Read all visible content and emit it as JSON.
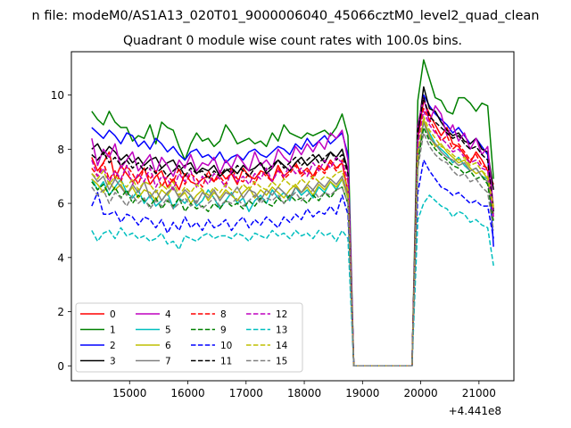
{
  "figure": {
    "suptitle": "n file: modeM0/AS1A13_020T01_9000006040_45066cztM0_level2_quad_clean",
    "offset_text": "+4.441e8"
  },
  "chart_data": {
    "type": "line",
    "title": "Quadrant 0 module wise count rates with 100.0s bins.",
    "xlabel": "",
    "ylabel": "",
    "x_offset": 444100000,
    "xlim": [
      14000,
      21600
    ],
    "ylim": [
      -0.55,
      11.6
    ],
    "xticks": [
      15000,
      16000,
      17000,
      18000,
      19000,
      20000,
      21000
    ],
    "xtick_labels": [
      "15000",
      "16000",
      "17000",
      "18000",
      "19000",
      "20000",
      "21000"
    ],
    "yticks": [
      0,
      2,
      4,
      6,
      8,
      10
    ],
    "ytick_labels": [
      "0",
      "2",
      "4",
      "6",
      "8",
      "10"
    ],
    "grid": false,
    "legend_position": "lower-left",
    "legend_columns": 4,
    "x_segments": [
      {
        "start": 14350,
        "end": 18750,
        "step": 100
      },
      {
        "start": 18850,
        "end": 19850,
        "step": 100
      },
      {
        "start": 19950,
        "end": 21250,
        "step": 100
      }
    ],
    "series": [
      {
        "name": "0",
        "color": "#ff0000",
        "dash": false,
        "active1": [
          7.7,
          7.2,
          7.5,
          7.9,
          6.9,
          7.4,
          7.1,
          6.8,
          7.0,
          7.3,
          6.7,
          7.0,
          7.2,
          6.6,
          6.9,
          6.5,
          7.1,
          6.8,
          6.7,
          6.9,
          7.0,
          6.8,
          7.2,
          6.9,
          7.1,
          6.7,
          7.3,
          7.0,
          6.9,
          7.2,
          7.1,
          6.8,
          7.4,
          7.0,
          7.2,
          7.5,
          7.1,
          7.3,
          7.0,
          7.4,
          7.2,
          7.6,
          7.3,
          7.5,
          6.4
        ],
        "active2": [
          8.4,
          9.8,
          9.3,
          8.9,
          8.5,
          8.8,
          8.2,
          8.1,
          7.8,
          7.5,
          7.9,
          7.6,
          7.2,
          6.7
        ]
      },
      {
        "name": "1",
        "color": "#008000",
        "dash": false,
        "active1": [
          9.4,
          9.1,
          8.9,
          9.4,
          9.0,
          8.8,
          8.8,
          8.3,
          8.5,
          8.4,
          8.9,
          8.2,
          9.0,
          8.8,
          8.7,
          8.1,
          7.6,
          8.2,
          8.6,
          8.3,
          8.4,
          8.1,
          8.3,
          8.9,
          8.6,
          8.2,
          8.3,
          8.4,
          8.2,
          8.3,
          8.1,
          8.6,
          8.3,
          8.9,
          8.6,
          8.5,
          8.4,
          8.6,
          8.5,
          8.6,
          8.7,
          8.5,
          8.8,
          9.3,
          8.5
        ],
        "active2": [
          9.8,
          11.3,
          10.6,
          9.9,
          9.8,
          9.4,
          9.3,
          9.9,
          9.9,
          9.7,
          9.4,
          9.7,
          9.6,
          6.9
        ]
      },
      {
        "name": "2",
        "color": "#0000ff",
        "dash": false,
        "active1": [
          8.8,
          8.6,
          8.4,
          8.7,
          8.5,
          8.2,
          8.6,
          8.5,
          8.1,
          8.3,
          8.0,
          8.4,
          8.2,
          7.9,
          8.1,
          7.8,
          7.6,
          7.9,
          8.0,
          7.7,
          7.8,
          7.6,
          7.9,
          7.5,
          7.7,
          7.8,
          7.6,
          7.9,
          8.0,
          7.8,
          7.7,
          7.9,
          8.1,
          8.0,
          7.8,
          8.2,
          8.0,
          8.4,
          8.1,
          8.3,
          8.5,
          8.2,
          8.4,
          8.6,
          7.8
        ],
        "active2": [
          8.6,
          10.0,
          9.6,
          9.3,
          9.1,
          8.9,
          8.6,
          8.8,
          8.5,
          8.2,
          8.4,
          8.1,
          7.8,
          4.4
        ]
      },
      {
        "name": "3",
        "color": "#000000",
        "dash": false,
        "active1": [
          8.0,
          8.2,
          7.8,
          8.1,
          7.9,
          7.6,
          7.8,
          7.5,
          7.7,
          7.4,
          7.6,
          7.7,
          7.3,
          7.5,
          7.6,
          7.2,
          7.4,
          7.5,
          7.1,
          7.3,
          7.2,
          7.4,
          7.0,
          7.2,
          7.3,
          7.1,
          7.4,
          7.2,
          7.3,
          7.5,
          7.1,
          7.3,
          7.6,
          7.4,
          7.2,
          7.5,
          7.7,
          7.4,
          7.6,
          7.8,
          7.5,
          7.9,
          7.7,
          8.0,
          7.2
        ],
        "active2": [
          8.6,
          10.3,
          9.5,
          9.4,
          9.0,
          8.7,
          8.5,
          8.6,
          8.3,
          8.2,
          8.4,
          8.0,
          7.9,
          6.5
        ]
      },
      {
        "name": "4",
        "color": "#bf00bf",
        "dash": false,
        "active1": [
          8.4,
          7.4,
          8.0,
          7.7,
          8.2,
          7.3,
          7.6,
          7.9,
          7.2,
          7.5,
          7.8,
          7.1,
          7.7,
          7.4,
          7.0,
          7.6,
          7.3,
          7.8,
          7.2,
          7.5,
          7.4,
          7.7,
          7.1,
          7.6,
          7.3,
          7.8,
          7.5,
          7.2,
          7.9,
          7.4,
          7.6,
          7.3,
          8.0,
          7.7,
          7.5,
          8.1,
          7.8,
          8.2,
          7.9,
          8.3,
          8.0,
          8.6,
          8.4,
          8.7,
          7.6
        ],
        "active2": [
          8.9,
          9.9,
          9.0,
          9.6,
          9.3,
          8.5,
          8.9,
          8.3,
          8.6,
          8.0,
          8.4,
          7.8,
          8.1,
          5.8
        ]
      },
      {
        "name": "5",
        "color": "#00bfbf",
        "dash": false,
        "active1": [
          6.9,
          6.5,
          6.8,
          6.3,
          6.6,
          6.9,
          6.4,
          6.2,
          6.5,
          6.0,
          6.3,
          5.9,
          6.1,
          6.4,
          5.8,
          6.2,
          6.0,
          6.3,
          5.9,
          6.1,
          6.5,
          6.2,
          5.8,
          6.1,
          6.4,
          6.0,
          6.2,
          5.7,
          6.1,
          6.3,
          6.0,
          6.5,
          6.2,
          6.4,
          6.1,
          6.6,
          6.3,
          6.5,
          6.2,
          6.6,
          6.4,
          6.8,
          6.5,
          6.9,
          6.2
        ],
        "active2": [
          7.8,
          9.0,
          8.6,
          8.2,
          8.0,
          7.8,
          7.5,
          7.7,
          7.4,
          7.2,
          7.3,
          7.0,
          6.9,
          5.6
        ]
      },
      {
        "name": "6",
        "color": "#bfbf00",
        "dash": false,
        "active1": [
          6.9,
          6.7,
          6.4,
          6.8,
          6.5,
          6.7,
          6.3,
          6.6,
          6.2,
          6.5,
          6.4,
          6.1,
          6.5,
          6.3,
          6.6,
          6.2,
          6.4,
          6.0,
          6.3,
          6.5,
          6.1,
          6.4,
          6.2,
          6.5,
          6.3,
          6.1,
          6.4,
          6.6,
          6.2,
          6.5,
          6.3,
          6.6,
          6.4,
          6.2,
          6.5,
          6.7,
          6.4,
          6.6,
          6.3,
          6.7,
          6.5,
          6.8,
          6.6,
          6.9,
          6.2
        ],
        "active2": [
          7.6,
          9.1,
          8.5,
          8.1,
          8.2,
          7.9,
          7.7,
          7.5,
          7.6,
          7.3,
          7.1,
          7.2,
          6.9,
          5.9
        ]
      },
      {
        "name": "7",
        "color": "#808080",
        "dash": false,
        "active1": [
          7.1,
          6.8,
          7.0,
          6.5,
          6.9,
          6.6,
          6.3,
          6.7,
          6.4,
          6.8,
          6.2,
          6.5,
          6.1,
          6.4,
          6.6,
          6.2,
          6.5,
          6.3,
          6.0,
          6.4,
          6.2,
          6.5,
          6.1,
          6.4,
          6.3,
          6.6,
          6.2,
          6.5,
          6.4,
          6.1,
          6.5,
          6.3,
          6.6,
          6.4,
          6.2,
          6.6,
          6.4,
          6.7,
          6.5,
          6.8,
          6.6,
          6.9,
          6.7,
          7.0,
          6.3
        ],
        "active2": [
          7.7,
          9.0,
          8.4,
          8.2,
          7.9,
          7.7,
          7.6,
          7.4,
          7.5,
          7.2,
          7.3,
          7.0,
          6.8,
          5.6
        ]
      },
      {
        "name": "8",
        "color": "#ff0000",
        "dash": true,
        "active1": [
          7.3,
          7.0,
          7.5,
          6.9,
          7.2,
          6.8,
          7.4,
          7.1,
          6.7,
          7.3,
          6.9,
          7.2,
          6.6,
          7.0,
          6.8,
          7.3,
          6.7,
          7.1,
          6.9,
          6.6,
          7.2,
          6.8,
          7.0,
          6.7,
          7.3,
          6.9,
          6.8,
          7.1,
          6.7,
          7.2,
          7.0,
          6.8,
          7.3,
          6.9,
          7.1,
          7.4,
          7.0,
          7.2,
          6.9,
          7.3,
          7.1,
          7.5,
          7.2,
          7.6,
          6.8
        ],
        "active2": [
          8.3,
          9.5,
          9.1,
          8.7,
          8.3,
          8.5,
          8.0,
          8.2,
          7.9,
          7.6,
          7.8,
          7.4,
          7.3,
          5.4
        ]
      },
      {
        "name": "9",
        "color": "#008000",
        "dash": true,
        "active1": [
          6.8,
          6.5,
          6.7,
          6.3,
          6.6,
          6.2,
          6.5,
          6.0,
          6.3,
          6.1,
          5.9,
          6.2,
          5.8,
          6.1,
          5.9,
          6.2,
          5.7,
          6.0,
          5.8,
          5.9,
          5.7,
          6.0,
          5.8,
          6.1,
          5.9,
          6.0,
          5.8,
          6.1,
          5.9,
          6.2,
          6.0,
          5.9,
          6.2,
          6.0,
          6.3,
          6.1,
          6.2,
          6.0,
          6.3,
          6.1,
          6.4,
          6.2,
          6.5,
          6.6,
          6.0
        ],
        "active2": [
          7.5,
          8.8,
          8.3,
          8.0,
          7.8,
          7.6,
          7.4,
          7.3,
          7.1,
          7.2,
          6.9,
          7.0,
          6.7,
          5.3
        ]
      },
      {
        "name": "10",
        "color": "#0000ff",
        "dash": true,
        "active1": [
          5.9,
          6.4,
          5.6,
          5.6,
          5.7,
          5.3,
          5.6,
          5.5,
          5.2,
          5.5,
          5.4,
          5.1,
          5.4,
          4.9,
          5.3,
          5.0,
          5.5,
          5.1,
          5.3,
          5.0,
          5.4,
          5.1,
          5.2,
          5.4,
          5.0,
          5.3,
          5.5,
          5.1,
          5.4,
          5.2,
          5.5,
          5.3,
          5.1,
          5.5,
          5.3,
          5.6,
          5.4,
          5.8,
          5.5,
          5.7,
          5.6,
          5.9,
          5.6,
          6.3,
          5.6
        ],
        "active2": [
          6.4,
          7.6,
          7.2,
          6.9,
          6.6,
          6.5,
          6.3,
          6.4,
          6.2,
          6.0,
          6.1,
          5.9,
          5.9,
          4.7
        ]
      },
      {
        "name": "11",
        "color": "#000000",
        "dash": true,
        "active1": [
          7.8,
          7.6,
          7.9,
          7.5,
          7.7,
          7.4,
          7.6,
          7.3,
          7.5,
          7.2,
          7.4,
          7.1,
          7.3,
          7.0,
          7.2,
          7.4,
          7.0,
          7.3,
          7.1,
          7.2,
          6.9,
          7.2,
          7.0,
          7.3,
          7.1,
          7.4,
          7.2,
          7.0,
          7.3,
          7.5,
          7.2,
          7.4,
          7.6,
          7.3,
          7.5,
          7.7,
          7.4,
          7.6,
          7.8,
          7.5,
          7.7,
          7.9,
          7.6,
          7.8,
          7.1
        ],
        "active2": [
          8.7,
          9.9,
          9.2,
          9.0,
          8.8,
          8.6,
          8.4,
          8.5,
          8.2,
          8.0,
          8.1,
          7.8,
          7.6,
          5.7
        ]
      },
      {
        "name": "12",
        "color": "#bf00bf",
        "dash": true,
        "active1": [
          7.6,
          7.0,
          7.3,
          6.8,
          7.2,
          6.9,
          7.4,
          6.7,
          7.1,
          6.8,
          7.3,
          6.6,
          7.0,
          6.9,
          6.5,
          7.1,
          6.8,
          7.2,
          6.6,
          7.0,
          6.7,
          7.1,
          6.9,
          6.6,
          7.2,
          6.8,
          7.0,
          6.7,
          7.1,
          6.9,
          7.3,
          6.8,
          7.2,
          7.0,
          7.4,
          7.1,
          7.3,
          7.0,
          7.5,
          7.2,
          7.6,
          7.3,
          7.7,
          7.5,
          6.9
        ],
        "active2": [
          8.2,
          9.4,
          8.9,
          8.6,
          8.4,
          8.2,
          7.9,
          8.0,
          7.7,
          7.5,
          7.6,
          7.3,
          7.2,
          5.5
        ]
      },
      {
        "name": "13",
        "color": "#00bfbf",
        "dash": true,
        "active1": [
          5.0,
          4.6,
          4.9,
          5.0,
          4.7,
          5.1,
          4.8,
          4.9,
          4.7,
          4.8,
          4.6,
          4.7,
          4.9,
          4.5,
          4.6,
          4.3,
          4.8,
          4.7,
          4.6,
          4.8,
          4.9,
          4.7,
          4.8,
          4.8,
          4.7,
          4.9,
          4.8,
          4.6,
          4.9,
          4.8,
          4.7,
          5.0,
          4.8,
          4.9,
          4.7,
          5.0,
          4.8,
          4.9,
          4.7,
          5.0,
          4.8,
          4.9,
          4.6,
          5.0,
          4.7
        ],
        "active2": [
          5.4,
          6.0,
          6.3,
          6.1,
          5.9,
          5.8,
          5.5,
          5.7,
          5.6,
          5.3,
          5.4,
          5.2,
          5.1,
          3.7
        ]
      },
      {
        "name": "14",
        "color": "#bfbf00",
        "dash": true,
        "active1": [
          7.1,
          6.9,
          7.2,
          6.7,
          7.0,
          6.8,
          6.6,
          6.9,
          6.5,
          6.8,
          6.7,
          6.4,
          6.7,
          6.5,
          6.8,
          6.3,
          6.6,
          6.4,
          6.7,
          6.5,
          6.3,
          6.6,
          6.4,
          6.7,
          6.5,
          6.4,
          6.7,
          6.5,
          6.8,
          6.6,
          6.5,
          6.8,
          6.6,
          6.9,
          6.7,
          6.6,
          6.9,
          6.7,
          7.0,
          6.8,
          7.0,
          6.9,
          7.1,
          7.2,
          6.5
        ],
        "active2": [
          7.9,
          9.2,
          8.7,
          8.4,
          8.1,
          8.0,
          7.8,
          7.6,
          7.7,
          7.4,
          7.5,
          7.2,
          7.0,
          5.8
        ]
      },
      {
        "name": "15",
        "color": "#808080",
        "dash": true,
        "active1": [
          6.6,
          6.3,
          6.5,
          6.0,
          6.4,
          6.2,
          5.9,
          6.3,
          6.0,
          6.2,
          5.8,
          6.1,
          5.9,
          6.2,
          5.8,
          6.0,
          6.2,
          5.9,
          6.1,
          5.8,
          6.0,
          6.2,
          5.9,
          6.1,
          6.0,
          6.2,
          5.9,
          6.1,
          6.3,
          6.0,
          6.2,
          6.1,
          6.3,
          6.0,
          6.2,
          6.4,
          6.1,
          6.3,
          6.5,
          6.2,
          6.4,
          6.3,
          6.5,
          6.6,
          6.0
        ],
        "active2": [
          7.3,
          8.6,
          8.1,
          7.8,
          7.6,
          7.5,
          7.2,
          7.0,
          7.1,
          6.8,
          6.9,
          6.6,
          6.4,
          5.0
        ]
      }
    ]
  }
}
